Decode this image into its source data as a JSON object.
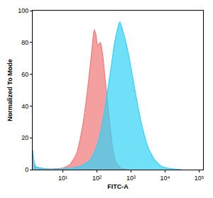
{
  "chart_data": {
    "type": "area",
    "x_label": "FITC-A",
    "y_label": "Normalized To Mode",
    "log": "x",
    "grid": false,
    "xlim": [
      1.3,
      130000
    ],
    "xticks": [
      {
        "value": 10,
        "label": "10¹"
      },
      {
        "value": 100,
        "label": "10²"
      },
      {
        "value": 1000,
        "label": "10³"
      },
      {
        "value": 10000,
        "label": "10⁴"
      },
      {
        "value": 100000,
        "label": "10⁵"
      }
    ],
    "ylim": [
      0,
      100
    ],
    "yticks": [
      0,
      20,
      40,
      60,
      80,
      100
    ],
    "series": [
      {
        "color": "#f07878",
        "x": [
          1.32,
          1.58,
          3.16,
          10,
          15.8,
          25.1,
          39.8,
          56.2,
          70.8,
          83.2,
          93.3,
          104.7,
          125.9,
          147.9,
          177.8,
          223.9,
          281.8,
          354.8,
          501.2,
          794.3
        ],
        "values": [
          10,
          2,
          0.5,
          1,
          3,
          10,
          30,
          55,
          75,
          88,
          85,
          78,
          80,
          72,
          55,
          35,
          15,
          5,
          1,
          0
        ]
      },
      {
        "color": "#33d1f5",
        "x": [
          1.32,
          1.58,
          3.16,
          10,
          31.6,
          63.1,
          100,
          141.3,
          199.5,
          263,
          331.1,
          398.1,
          467.7,
          562.3,
          707.9,
          891.3,
          1122,
          1585,
          2239,
          3162,
          5012,
          7943,
          15849,
          31623
        ],
        "values": [
          12,
          2,
          0.5,
          0.5,
          2,
          6,
          15,
          28,
          48,
          65,
          80,
          88,
          93,
          88,
          80,
          70,
          58,
          40,
          25,
          14,
          6,
          2,
          0.5,
          0
        ]
      }
    ]
  }
}
